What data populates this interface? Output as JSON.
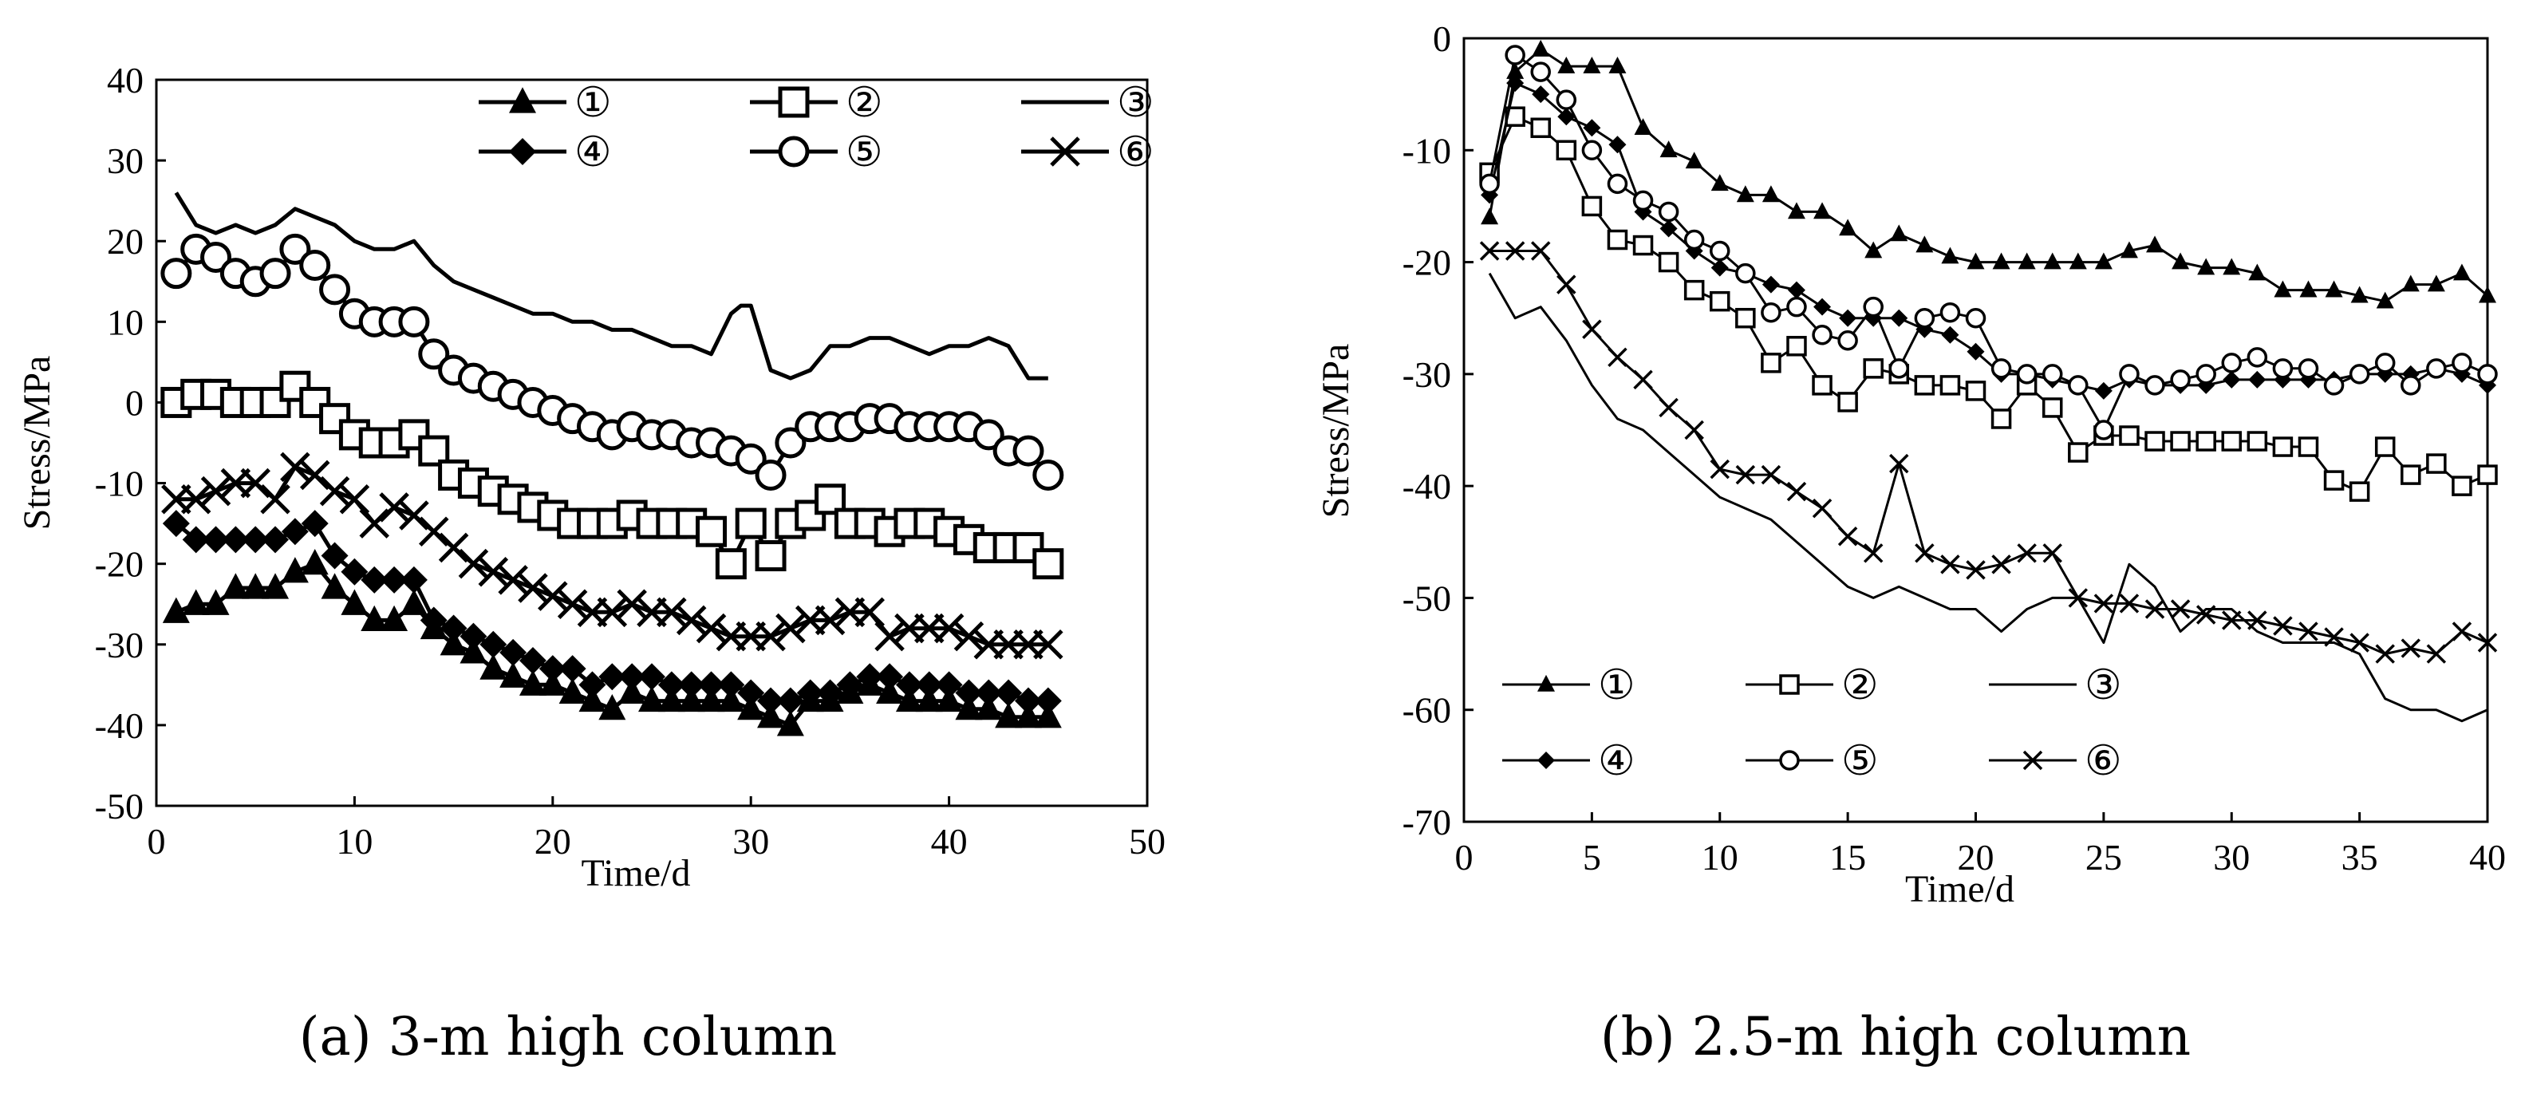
{
  "chart_data": [
    {
      "type": "line",
      "caption": "(a) 3-m high column",
      "xlabel": "Time/d",
      "ylabel": "Stress/MPa",
      "xlim": [
        0,
        50
      ],
      "ylim": [
        -50,
        40
      ],
      "xticks": [
        "0",
        "10",
        "20",
        "30",
        "40",
        "50"
      ],
      "yticks": [
        "40",
        "30",
        "20",
        "10",
        "0",
        "-10",
        "-20",
        "-30",
        "-40",
        "-50"
      ],
      "legend": [
        "①",
        "②",
        "③",
        "④",
        "⑤",
        "⑥"
      ],
      "series": [
        {
          "name": "①",
          "marker": "triangle",
          "x": [
            1,
            2,
            3,
            4,
            5,
            6,
            7,
            8,
            9,
            10,
            11,
            12,
            13,
            14,
            15,
            16,
            17,
            18,
            19,
            20,
            21,
            22,
            23,
            24,
            25,
            26,
            27,
            28,
            29,
            30,
            31,
            32,
            33,
            34,
            35,
            36,
            37,
            38,
            39,
            40,
            41,
            42,
            43,
            44,
            45
          ],
          "values": [
            -26,
            -25,
            -25,
            -23,
            -23,
            -23,
            -21,
            -20,
            -23,
            -25,
            -27,
            -27,
            -25,
            -28,
            -30,
            -31,
            -33,
            -34,
            -35,
            -35,
            -36,
            -37,
            -38,
            -36,
            -37,
            -37,
            -37,
            -37,
            -37,
            -38,
            -39,
            -40,
            -37,
            -37,
            -36,
            -35,
            -36,
            -37,
            -37,
            -37,
            -38,
            -38,
            -39,
            -39,
            -39
          ]
        },
        {
          "name": "②",
          "marker": "square",
          "x": [
            1,
            2,
            3,
            4,
            5,
            6,
            7,
            8,
            9,
            10,
            11,
            12,
            13,
            14,
            15,
            16,
            17,
            18,
            19,
            20,
            21,
            22,
            23,
            24,
            25,
            26,
            27,
            28,
            29,
            30,
            31,
            32,
            33,
            34,
            35,
            36,
            37,
            38,
            39,
            40,
            41,
            42,
            43,
            44,
            45
          ],
          "values": [
            0,
            1,
            1,
            0,
            0,
            0,
            2,
            0,
            -2,
            -4,
            -5,
            -5,
            -4,
            -6,
            -9,
            -10,
            -11,
            -12,
            -13,
            -14,
            -15,
            -15,
            -15,
            -14,
            -15,
            -15,
            -15,
            -16,
            -20,
            -15,
            -19,
            -15,
            -14,
            -12,
            -15,
            -15,
            -16,
            -15,
            -15,
            -16,
            -17,
            -18,
            -18,
            -18,
            -20
          ]
        },
        {
          "name": "③",
          "marker": "none",
          "x": [
            1,
            2,
            3,
            4,
            5,
            6,
            7,
            8,
            9,
            10,
            11,
            12,
            13,
            14,
            15,
            16,
            17,
            18,
            19,
            20,
            21,
            22,
            23,
            24,
            25,
            26,
            27,
            28,
            29,
            29.5,
            30,
            31,
            32,
            33,
            34,
            35,
            36,
            37,
            38,
            39,
            40,
            41,
            42,
            43,
            44,
            45
          ],
          "values": [
            26,
            22,
            21,
            22,
            21,
            22,
            24,
            23,
            22,
            20,
            19,
            19,
            20,
            17,
            15,
            14,
            13,
            12,
            11,
            11,
            10,
            10,
            9,
            9,
            8,
            7,
            7,
            6,
            11,
            12,
            12,
            4,
            3,
            4,
            7,
            7,
            8,
            8,
            7,
            6,
            7,
            7,
            8,
            7,
            3,
            3
          ]
        },
        {
          "name": "④",
          "marker": "diamond",
          "x": [
            1,
            2,
            3,
            4,
            5,
            6,
            7,
            8,
            9,
            10,
            11,
            12,
            13,
            14,
            15,
            16,
            17,
            18,
            19,
            20,
            21,
            22,
            23,
            24,
            25,
            26,
            27,
            28,
            29,
            30,
            31,
            32,
            33,
            34,
            35,
            36,
            37,
            38,
            39,
            40,
            41,
            42,
            43,
            44,
            45
          ],
          "values": [
            -15,
            -17,
            -17,
            -17,
            -17,
            -17,
            -16,
            -15,
            -19,
            -21,
            -22,
            -22,
            -22,
            -27,
            -28,
            -29,
            -30,
            -31,
            -32,
            -33,
            -33,
            -35,
            -34,
            -34,
            -34,
            -35,
            -35,
            -35,
            -35,
            -36,
            -37,
            -37,
            -36,
            -36,
            -35,
            -34,
            -34,
            -35,
            -35,
            -35,
            -36,
            -36,
            -36,
            -37,
            -37
          ]
        },
        {
          "name": "⑤",
          "marker": "circle",
          "x": [
            1,
            2,
            3,
            4,
            5,
            6,
            7,
            8,
            9,
            10,
            11,
            12,
            13,
            14,
            15,
            16,
            17,
            18,
            19,
            20,
            21,
            22,
            23,
            24,
            25,
            26,
            27,
            28,
            29,
            30,
            31,
            32,
            33,
            34,
            35,
            36,
            37,
            38,
            39,
            40,
            41,
            42,
            43,
            44,
            45
          ],
          "values": [
            16,
            19,
            18,
            16,
            15,
            16,
            19,
            17,
            14,
            11,
            10,
            10,
            10,
            6,
            4,
            3,
            2,
            1,
            0,
            -1,
            -2,
            -3,
            -4,
            -3,
            -4,
            -4,
            -5,
            -5,
            -6,
            -7,
            -9,
            -5,
            -3,
            -3,
            -3,
            -2,
            -2,
            -3,
            -3,
            -3,
            -3,
            -4,
            -6,
            -6,
            -9
          ]
        },
        {
          "name": "⑥",
          "marker": "x",
          "x": [
            1,
            2,
            3,
            4,
            5,
            6,
            7,
            8,
            9,
            10,
            11,
            12,
            13,
            14,
            15,
            16,
            17,
            18,
            19,
            20,
            21,
            22,
            23,
            24,
            25,
            26,
            27,
            28,
            29,
            30,
            31,
            32,
            33,
            34,
            35,
            36,
            37,
            38,
            39,
            40,
            41,
            42,
            43,
            44,
            45
          ],
          "values": [
            -12,
            -12,
            -11,
            -10,
            -10,
            -12,
            -8,
            -9,
            -11,
            -12,
            -15,
            -13,
            -14,
            -16,
            -18,
            -20,
            -21,
            -22,
            -23,
            -24,
            -25,
            -26,
            -26,
            -25,
            -26,
            -26,
            -27,
            -28,
            -29,
            -29,
            -29,
            -28,
            -27,
            -27,
            -26,
            -26,
            -29,
            -28,
            -28,
            -28,
            -29,
            -30,
            -30,
            -30,
            -30
          ]
        }
      ]
    },
    {
      "type": "line",
      "caption": "(b) 2.5-m high column",
      "xlabel": "Time/d",
      "ylabel": "Stress/MPa",
      "xlim": [
        0,
        40
      ],
      "ylim": [
        -70,
        0
      ],
      "xticks": [
        "0",
        "5",
        "10",
        "15",
        "20",
        "25",
        "30",
        "35",
        "40"
      ],
      "yticks": [
        "0",
        "-10",
        "-20",
        "-30",
        "-40",
        "-50",
        "-60",
        "-70"
      ],
      "legend": [
        "①",
        "②",
        "③",
        "④",
        "⑤",
        "⑥"
      ],
      "series": [
        {
          "name": "①",
          "marker": "triangle",
          "x": [
            1,
            2,
            3,
            4,
            5,
            6,
            7,
            8,
            9,
            10,
            11,
            12,
            13,
            14,
            15,
            16,
            17,
            18,
            19,
            20,
            21,
            22,
            23,
            24,
            25,
            26,
            27,
            28,
            29,
            30,
            31,
            32,
            33,
            34,
            35,
            36,
            37,
            38,
            39,
            40
          ],
          "values": [
            -16,
            -3,
            -1,
            -2.5,
            -2.5,
            -2.5,
            -8,
            -10,
            -11,
            -13,
            -14,
            -14,
            -15.5,
            -15.5,
            -17,
            -19,
            -17.5,
            -18.5,
            -19.5,
            -20,
            -20,
            -20,
            -20,
            -20,
            -20,
            -19,
            -18.5,
            -20,
            -20.5,
            -20.5,
            -21,
            -22.5,
            -22.5,
            -22.5,
            -23,
            -23.5,
            -22,
            -22,
            -21,
            -23
          ]
        },
        {
          "name": "②",
          "marker": "square",
          "x": [
            1,
            2,
            3,
            4,
            5,
            6,
            7,
            8,
            9,
            10,
            11,
            12,
            13,
            14,
            15,
            16,
            17,
            18,
            19,
            20,
            21,
            22,
            23,
            24,
            25,
            26,
            27,
            28,
            29,
            30,
            31,
            32,
            33,
            34,
            35,
            36,
            37,
            38,
            39,
            40
          ],
          "values": [
            -12,
            -7,
            -8,
            -10,
            -15,
            -18,
            -18.5,
            -20,
            -22.5,
            -23.5,
            -25,
            -29,
            -27.5,
            -31,
            -32.5,
            -29.5,
            -30,
            -31,
            -31,
            -31.5,
            -34,
            -31,
            -33,
            -37,
            -35.5,
            -35.5,
            -36,
            -36,
            -36,
            -36,
            -36,
            -36.5,
            -36.5,
            -39.5,
            -40.5,
            -36.5,
            -39,
            -38,
            -40,
            -39
          ]
        },
        {
          "name": "③",
          "marker": "none",
          "x": [
            1,
            2,
            3,
            4,
            5,
            6,
            7,
            8,
            9,
            10,
            11,
            12,
            13,
            14,
            15,
            16,
            17,
            18,
            19,
            20,
            21,
            22,
            23,
            24,
            25,
            26,
            27,
            28,
            29,
            30,
            31,
            32,
            33,
            34,
            35,
            36,
            37,
            38,
            39,
            40
          ],
          "values": [
            -21,
            -25,
            -24,
            -27,
            -31,
            -34,
            -35,
            -37,
            -39,
            -41,
            -42,
            -43,
            -45,
            -47,
            -49,
            -50,
            -49,
            -50,
            -51,
            -51,
            -53,
            -51,
            -50,
            -50,
            -54,
            -47,
            -49,
            -53,
            -51,
            -51,
            -53,
            -54,
            -54,
            -54,
            -55,
            -59,
            -60,
            -60,
            -61,
            -60
          ]
        },
        {
          "name": "④",
          "marker": "diamond",
          "x": [
            1,
            2,
            3,
            4,
            5,
            6,
            7,
            8,
            9,
            10,
            11,
            12,
            13,
            14,
            15,
            16,
            17,
            18,
            19,
            20,
            21,
            22,
            23,
            24,
            25,
            26,
            27,
            28,
            29,
            30,
            31,
            32,
            33,
            34,
            35,
            36,
            37,
            38,
            39,
            40
          ],
          "values": [
            -14,
            -4,
            -5,
            -7,
            -8,
            -9.5,
            -15.5,
            -17,
            -19,
            -20.5,
            -21,
            -22,
            -22.5,
            -24,
            -25,
            -25,
            -25,
            -26,
            -26.5,
            -28,
            -30,
            -30,
            -30.5,
            -31,
            -31.5,
            -30.5,
            -31,
            -31,
            -31,
            -30.5,
            -30.5,
            -30.5,
            -30.5,
            -30.5,
            -30,
            -30,
            -30,
            -29.5,
            -30,
            -31
          ]
        },
        {
          "name": "⑤",
          "marker": "circle",
          "x": [
            1,
            2,
            3,
            4,
            5,
            6,
            7,
            8,
            9,
            10,
            11,
            12,
            13,
            14,
            15,
            16,
            17,
            18,
            19,
            20,
            21,
            22,
            23,
            24,
            25,
            26,
            27,
            28,
            29,
            30,
            31,
            32,
            33,
            34,
            35,
            36,
            37,
            38,
            39,
            40
          ],
          "values": [
            -13,
            -1.5,
            -3,
            -5.5,
            -10,
            -13,
            -14.5,
            -15.5,
            -18,
            -19,
            -21,
            -24.5,
            -24,
            -26.5,
            -27,
            -24,
            -29.5,
            -25,
            -24.5,
            -25,
            -29.5,
            -30,
            -30,
            -31,
            -35,
            -30,
            -31,
            -30.5,
            -30,
            -29,
            -28.5,
            -29.5,
            -29.5,
            -31,
            -30,
            -29,
            -31,
            -29.5,
            -29,
            -30
          ]
        },
        {
          "name": "⑥",
          "marker": "x",
          "x": [
            1,
            2,
            3,
            4,
            5,
            6,
            7,
            8,
            9,
            10,
            11,
            12,
            13,
            14,
            15,
            16,
            17,
            18,
            19,
            20,
            21,
            22,
            23,
            24,
            25,
            26,
            27,
            28,
            29,
            30,
            31,
            32,
            33,
            34,
            35,
            36,
            37,
            38,
            39,
            40
          ],
          "values": [
            -19,
            -19,
            -19,
            -22,
            -26,
            -28.5,
            -30.5,
            -33,
            -35,
            -38.5,
            -39,
            -39,
            -40.5,
            -42,
            -44.5,
            -46,
            -38,
            -46,
            -47,
            -47.5,
            -47,
            -46,
            -46,
            -50,
            -50.5,
            -50.5,
            -51,
            -51,
            -51.5,
            -52,
            -52,
            -52.5,
            -53,
            -53.5,
            -54,
            -55,
            -54.5,
            -55,
            -53,
            -54
          ]
        }
      ]
    }
  ]
}
